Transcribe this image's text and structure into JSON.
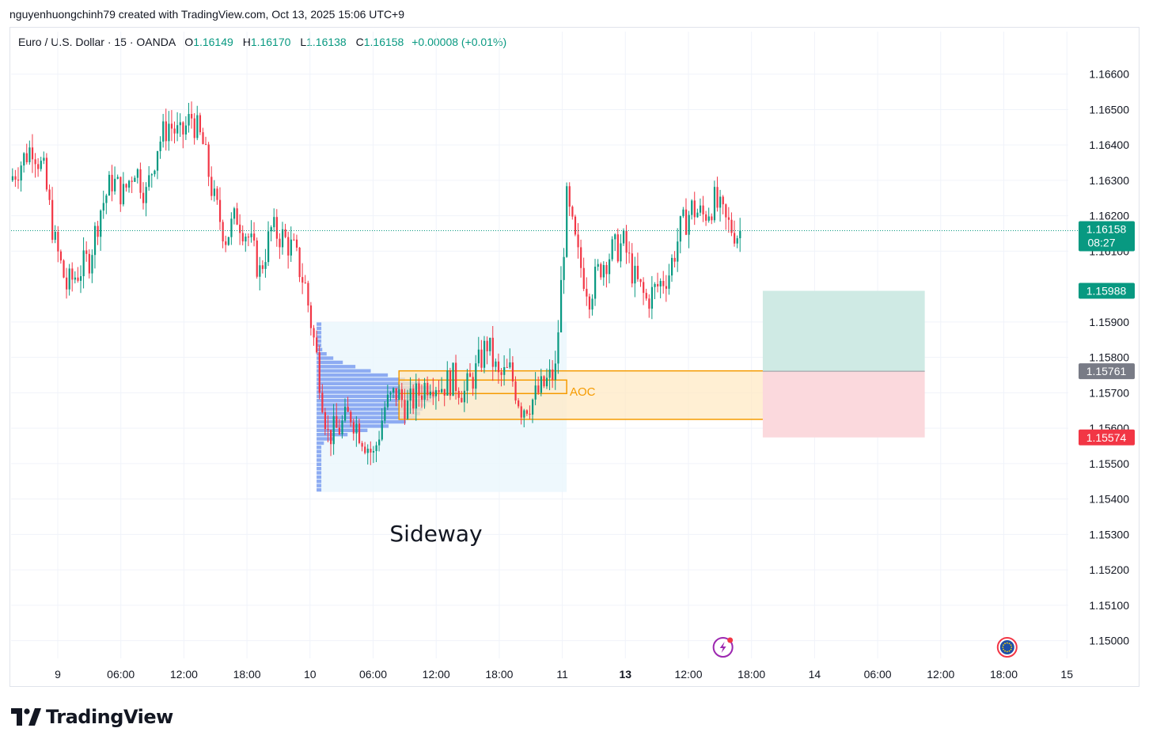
{
  "attribution": "nguyenhuongchinh79 created with TradingView.com, Oct 13, 2025 15:06 UTC+9",
  "legend": {
    "symbol": "Euro / U.S. Dollar · 15 · OANDA",
    "open_label": "O",
    "open": "1.16149",
    "high_label": "H",
    "high": "1.16170",
    "low_label": "L",
    "low": "1.16138",
    "close_label": "C",
    "close": "1.16158",
    "change": "+0.00008 (+0.01%)"
  },
  "brand": "TradingView",
  "colors": {
    "up": "#089981",
    "down": "#f23645",
    "zone_fill": "#ffe9c4",
    "zone_stroke": "#f59b00",
    "profit": "#cfeae4",
    "loss": "#fbd9dd",
    "volume_profile": "#7b9ef0"
  },
  "chart_data": {
    "type": "candlestick",
    "symbol": "EURUSD",
    "timeframe": "15",
    "y_range": [
      1.1495,
      1.1672
    ],
    "y_ticks": [
      "1.16600",
      "1.16500",
      "1.16400",
      "1.16300",
      "1.16200",
      "1.16100",
      "1.15900",
      "1.15800",
      "1.15700",
      "1.15600",
      "1.15500",
      "1.15400",
      "1.15300",
      "1.15200",
      "1.15100",
      "1.15000"
    ],
    "x_ticks": [
      {
        "label": "9",
        "bold": false
      },
      {
        "label": "06:00",
        "bold": false
      },
      {
        "label": "12:00",
        "bold": false
      },
      {
        "label": "18:00",
        "bold": false
      },
      {
        "label": "10",
        "bold": false
      },
      {
        "label": "06:00",
        "bold": false
      },
      {
        "label": "12:00",
        "bold": false
      },
      {
        "label": "18:00",
        "bold": false
      },
      {
        "label": "11",
        "bold": false
      },
      {
        "label": "13",
        "bold": true
      },
      {
        "label": "12:00",
        "bold": false
      },
      {
        "label": "18:00",
        "bold": false
      },
      {
        "label": "14",
        "bold": false
      },
      {
        "label": "06:00",
        "bold": false
      },
      {
        "label": "12:00",
        "bold": false
      },
      {
        "label": "18:00",
        "bold": false
      },
      {
        "label": "15",
        "bold": false
      }
    ],
    "price_path": [
      [
        0,
        1.163
      ],
      [
        4,
        1.1635
      ],
      [
        8,
        1.164
      ],
      [
        12,
        1.1632
      ],
      [
        16,
        1.1612
      ],
      [
        20,
        1.16
      ],
      [
        24,
        1.1604
      ],
      [
        28,
        1.1608
      ],
      [
        32,
        1.1622
      ],
      [
        36,
        1.163
      ],
      [
        40,
        1.1626
      ],
      [
        44,
        1.1634
      ],
      [
        48,
        1.1626
      ],
      [
        52,
        1.164
      ],
      [
        56,
        1.1646
      ],
      [
        60,
        1.1642
      ],
      [
        64,
        1.1648
      ],
      [
        68,
        1.164
      ],
      [
        72,
        1.1624
      ],
      [
        76,
        1.1614
      ],
      [
        80,
        1.162
      ],
      [
        84,
        1.1614
      ],
      [
        88,
        1.1604
      ],
      [
        92,
        1.1616
      ],
      [
        96,
        1.1614
      ],
      [
        100,
        1.161
      ],
      [
        104,
        1.16
      ],
      [
        108,
        1.158
      ],
      [
        112,
        1.1558
      ],
      [
        116,
        1.156
      ],
      [
        120,
        1.1564
      ],
      [
        124,
        1.1558
      ],
      [
        128,
        1.1552
      ],
      [
        132,
        1.1566
      ],
      [
        136,
        1.157
      ],
      [
        140,
        1.1566
      ],
      [
        144,
        1.157
      ],
      [
        148,
        1.1574
      ],
      [
        152,
        1.1572
      ],
      [
        156,
        1.1574
      ],
      [
        160,
        1.157
      ],
      [
        164,
        1.1576
      ],
      [
        168,
        1.1584
      ],
      [
        172,
        1.1574
      ],
      [
        176,
        1.1576
      ],
      [
        180,
        1.1566
      ],
      [
        184,
        1.1568
      ],
      [
        188,
        1.1572
      ],
      [
        192,
        1.1576
      ],
      [
        196,
        1.1624
      ],
      [
        200,
        1.1608
      ],
      [
        204,
        1.1598
      ],
      [
        208,
        1.1606
      ],
      [
        212,
        1.161
      ],
      [
        216,
        1.1612
      ],
      [
        220,
        1.1602
      ],
      [
        224,
        1.1596
      ],
      [
        228,
        1.16
      ],
      [
        232,
        1.1604
      ],
      [
        236,
        1.1616
      ],
      [
        240,
        1.1622
      ],
      [
        244,
        1.162
      ],
      [
        248,
        1.1624
      ],
      [
        252,
        1.1618
      ],
      [
        256,
        1.1615
      ]
    ],
    "last_bar_index": 256,
    "bar_count_visible": 372,
    "volume_profile": {
      "label": "Sideway",
      "from_bar": 107,
      "to_bar": 195,
      "price_top": 1.159,
      "price_bottom": 1.1542
    },
    "zone": {
      "label": "AOC",
      "from_bar": 136,
      "to_bar": 267,
      "price_top": 1.15762,
      "price_bottom": 1.15625,
      "inner_top": 1.15736,
      "inner_bottom": 1.15698,
      "inner_to_bar": 195
    },
    "position": {
      "from_bar": 264,
      "to_bar": 321,
      "target": 1.15988,
      "entry": 1.15761,
      "stop": 1.15574
    },
    "price_labels": [
      {
        "price": 1.16158,
        "text": "1.16158",
        "sub": "08:27",
        "color": "#089981"
      },
      {
        "price": 1.15988,
        "text": "1.15988",
        "color": "#089981"
      },
      {
        "price": 1.15761,
        "text": "1.15761",
        "color": "#787b86"
      },
      {
        "price": 1.15574,
        "text": "1.15574",
        "color": "#f23645"
      }
    ],
    "events": [
      {
        "bar": 250,
        "icon": "lightning-icon"
      },
      {
        "bar": 350,
        "icon": "eu-flag-icon"
      }
    ]
  }
}
